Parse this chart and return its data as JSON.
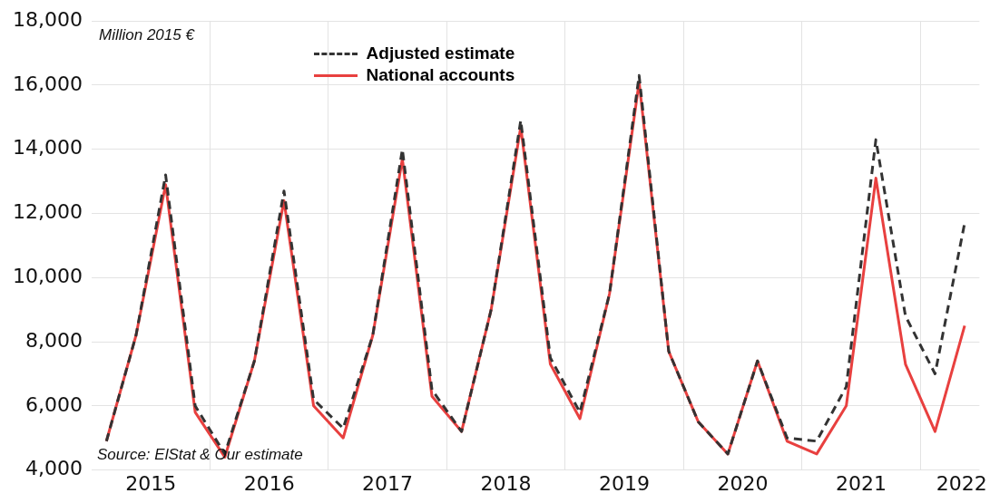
{
  "chart_data": {
    "type": "line",
    "x": [
      2015.125,
      2015.375,
      2015.625,
      2015.875,
      2016.125,
      2016.375,
      2016.625,
      2016.875,
      2017.125,
      2017.375,
      2017.625,
      2017.875,
      2018.125,
      2018.375,
      2018.625,
      2018.875,
      2019.125,
      2019.375,
      2019.625,
      2019.875,
      2020.125,
      2020.375,
      2020.625,
      2020.875,
      2021.125,
      2021.375,
      2021.625,
      2021.875,
      2022.125,
      2022.375
    ],
    "series": [
      {
        "name": "Adjusted estimate",
        "color": "#333333",
        "line_style": "dashed",
        "values": [
          4900,
          8200,
          13200,
          6000,
          4500,
          7400,
          12700,
          6200,
          5300,
          8200,
          14000,
          6500,
          5200,
          9000,
          14900,
          7500,
          5800,
          9500,
          16300,
          7700,
          5500,
          4500,
          7400,
          5000,
          4900,
          6600,
          14300,
          8800,
          7000,
          11700
        ]
      },
      {
        "name": "National accounts",
        "color": "#e8403f",
        "line_style": "solid",
        "values": [
          4900,
          8200,
          12900,
          5800,
          4400,
          7400,
          12400,
          6000,
          5000,
          8200,
          13700,
          6300,
          5200,
          9000,
          14700,
          7300,
          5600,
          9500,
          16100,
          7700,
          5500,
          4500,
          7400,
          4900,
          4500,
          6000,
          13100,
          7300,
          5200,
          8500
        ]
      }
    ],
    "xlim": [
      2015,
      2022.5
    ],
    "xticks": [
      {
        "value": 2015.5,
        "label": "2015"
      },
      {
        "value": 2016,
        "label": null
      },
      {
        "value": 2016.5,
        "label": "2016"
      },
      {
        "value": 2017,
        "label": null
      },
      {
        "value": 2017.5,
        "label": "2017"
      },
      {
        "value": 2018,
        "label": null
      },
      {
        "value": 2018.5,
        "label": "2018"
      },
      {
        "value": 2019,
        "label": null
      },
      {
        "value": 2019.5,
        "label": "2019"
      },
      {
        "value": 2020,
        "label": null
      },
      {
        "value": 2020.5,
        "label": "2020"
      },
      {
        "value": 2021,
        "label": null
      },
      {
        "value": 2021.5,
        "label": "2021"
      },
      {
        "value": 2022,
        "label": null
      },
      {
        "value": 2022.35,
        "label": "2022"
      }
    ],
    "ylim": [
      4000,
      18000
    ],
    "yticks": [
      {
        "value": 4000,
        "label": "4,000"
      },
      {
        "value": 6000,
        "label": "6,000"
      },
      {
        "value": 8000,
        "label": "8,000"
      },
      {
        "value": 10000,
        "label": "10,000"
      },
      {
        "value": 12000,
        "label": "12,000"
      },
      {
        "value": 14000,
        "label": "14,000"
      },
      {
        "value": 16000,
        "label": "16,000"
      },
      {
        "value": 18000,
        "label": "18,000"
      }
    ],
    "grid": true,
    "legend": "top",
    "marker": "none",
    "annotations": [
      "Million 2015 €",
      "Source: ElStat & Our estimate"
    ]
  }
}
